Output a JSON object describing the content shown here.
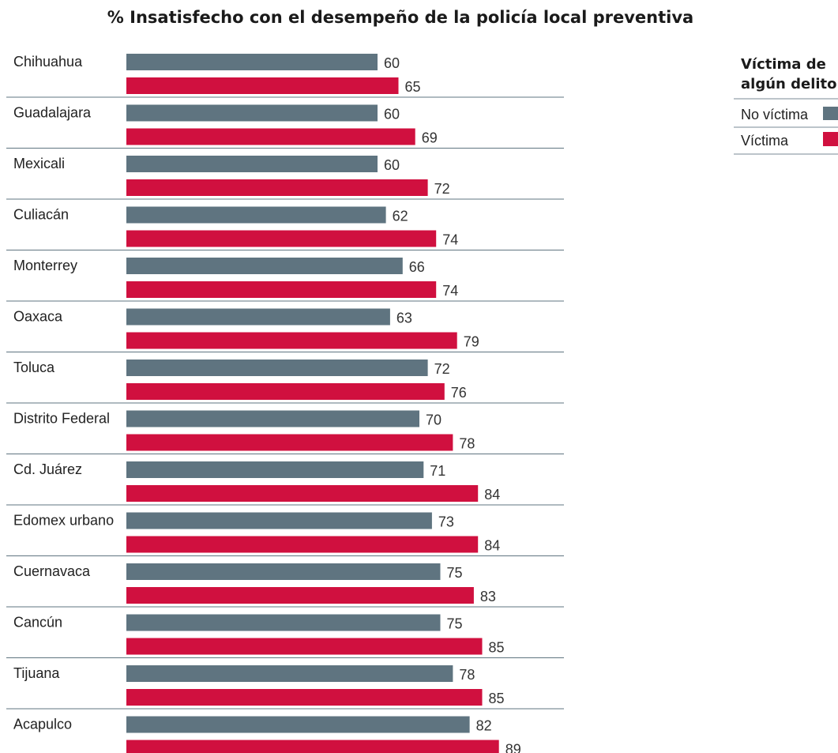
{
  "chart_data": {
    "type": "bar",
    "orientation": "horizontal",
    "title": "% Insatisfecho con el desempeño de la policía local preventiva",
    "categories": [
      "Chihuahua",
      "Guadalajara",
      "Mexicali",
      "Culiacán",
      "Monterrey",
      "Oaxaca",
      "Toluca",
      "Distrito Federal",
      "Cd. Juárez",
      "Edomex urbano",
      "Cuernavaca",
      "Cancún",
      "Tijuana",
      "Acapulco"
    ],
    "series": [
      {
        "name": "No víctima",
        "color": "#5f7480",
        "values": [
          60,
          60,
          60,
          62,
          66,
          63,
          72,
          70,
          71,
          73,
          75,
          75,
          78,
          82
        ]
      },
      {
        "name": "Víctima",
        "color": "#d0103f",
        "values": [
          65,
          69,
          72,
          74,
          74,
          79,
          76,
          78,
          84,
          84,
          83,
          85,
          85,
          89
        ]
      }
    ],
    "legend": {
      "title_line1": "Víctima de",
      "title_line2": "algún delito",
      "position": "top-right"
    },
    "xlim": [
      0,
      100
    ],
    "grid": false
  }
}
